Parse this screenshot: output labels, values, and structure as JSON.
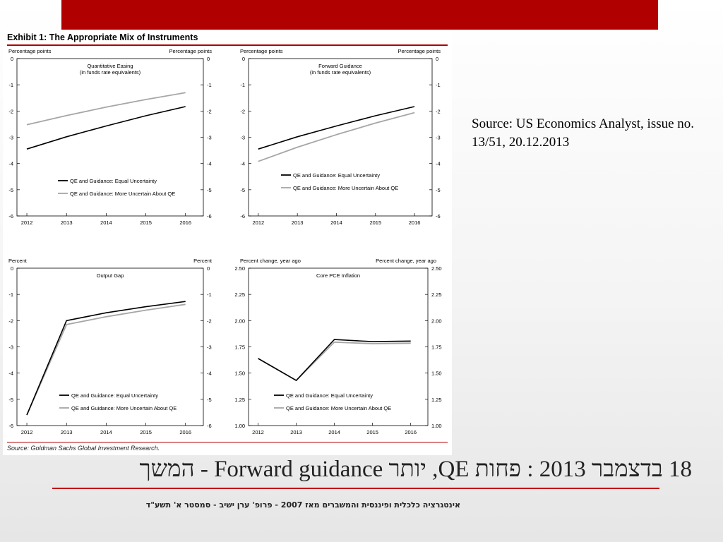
{
  "exhibit": {
    "title": "Exhibit 1: The Appropriate Mix of Instruments",
    "source": "Source: Goldman Sachs Global Investment Research."
  },
  "slide": {
    "source_note": "Source: US Economics Analyst, issue no. 13/51, 20.12.2013",
    "title": "18 בדצמבר 2013 : פחות QE, יותר Forward guidance - המשך",
    "footer": "אינטגרציה כלכלית ופיננסית והמשברים מאז 2007 - פרופ' ערן ישיב - סמסטר א' תשע\"ד"
  },
  "colors": {
    "top_bar": "#b00000",
    "series_equal": "#000000",
    "series_more_uncertain": "#a6a6a6",
    "title_rule": "#c00000"
  },
  "chart_data": [
    {
      "type": "line",
      "title": "Quantitative Easing",
      "subtitle": "(in funds rate equivalents)",
      "ylabel_left": "Percentage points",
      "ylabel_right": "Percentage points",
      "x": [
        2012,
        2016
      ],
      "xticks": [
        "2012",
        "2013",
        "2014",
        "2015",
        "2016"
      ],
      "xlim": [
        2011.75,
        2016.45
      ],
      "ylim": [
        -6,
        0
      ],
      "yticks": [
        "0",
        "-1",
        "-2",
        "-3",
        "-4",
        "-5",
        "-6"
      ],
      "ytick_values": [
        0,
        -1,
        -2,
        -3,
        -4,
        -5,
        -6
      ],
      "legend_position": "bottom-left",
      "series": [
        {
          "name": "QE and Guidance: Equal Uncertainty",
          "x": [
            2012,
            2013,
            2014,
            2015,
            2016
          ],
          "values": [
            -3.45,
            -2.98,
            -2.57,
            -2.18,
            -1.83
          ]
        },
        {
          "name": "QE and Guidance: More Uncertain About QE",
          "x": [
            2012,
            2013,
            2014,
            2015,
            2016
          ],
          "values": [
            -2.52,
            -2.17,
            -1.85,
            -1.56,
            -1.3
          ]
        }
      ]
    },
    {
      "type": "line",
      "title": "Forward Guidance",
      "subtitle": "(in funds rate equivalents)",
      "ylabel_left": "Percentage points",
      "ylabel_right": "Percentage points",
      "xticks": [
        "2012",
        "2013",
        "2014",
        "2015",
        "2016"
      ],
      "xlim": [
        2011.75,
        2016.45
      ],
      "ylim": [
        -6,
        0
      ],
      "yticks": [
        "0",
        "-1",
        "-2",
        "-3",
        "-4",
        "-5",
        "-6"
      ],
      "ytick_values": [
        0,
        -1,
        -2,
        -3,
        -4,
        -5,
        -6
      ],
      "legend_position": "bottom-left",
      "series": [
        {
          "name": "QE and Guidance: Equal Uncertainty",
          "x": [
            2012,
            2013,
            2014,
            2015,
            2016
          ],
          "values": [
            -3.45,
            -2.98,
            -2.57,
            -2.18,
            -1.83
          ]
        },
        {
          "name": "QE and Guidance: More Uncertain About QE",
          "x": [
            2012,
            2013,
            2014,
            2015,
            2016
          ],
          "values": [
            -3.92,
            -3.38,
            -2.9,
            -2.46,
            -2.06
          ]
        }
      ]
    },
    {
      "type": "line",
      "title": "Output Gap",
      "subtitle": "",
      "ylabel_left": "Percent",
      "ylabel_right": "Percent",
      "xticks": [
        "2012",
        "2013",
        "2014",
        "2015",
        "2016"
      ],
      "xlim": [
        2011.75,
        2016.45
      ],
      "ylim": [
        -6,
        0
      ],
      "yticks": [
        "0",
        "-1",
        "-2",
        "-3",
        "-4",
        "-5",
        "-6"
      ],
      "ytick_values": [
        0,
        -1,
        -2,
        -3,
        -4,
        -5,
        -6
      ],
      "legend_position": "bottom-right",
      "series": [
        {
          "name": "QE and Guidance: Equal Uncertainty",
          "x": [
            2012,
            2013,
            2014,
            2015,
            2016
          ],
          "values": [
            -5.6,
            -2.0,
            -1.7,
            -1.47,
            -1.27
          ]
        },
        {
          "name": "QE and Guidance: More Uncertain About QE",
          "x": [
            2012,
            2013,
            2014,
            2015,
            2016
          ],
          "values": [
            -5.6,
            -2.15,
            -1.85,
            -1.6,
            -1.38
          ]
        }
      ]
    },
    {
      "type": "line",
      "title": "Core PCE Inflation",
      "subtitle": "",
      "ylabel_left": "Percent change, year ago",
      "ylabel_right": "Percent change, year ago",
      "xticks": [
        "2012",
        "2013",
        "2014",
        "2015",
        "2016"
      ],
      "xlim": [
        2011.75,
        2016.45
      ],
      "ylim": [
        1.0,
        2.5
      ],
      "yticks": [
        "2.50",
        "2.25",
        "2.00",
        "1.75",
        "1.50",
        "1.25",
        "1.00"
      ],
      "ytick_values": [
        2.5,
        2.25,
        2.0,
        1.75,
        1.5,
        1.25,
        1.0
      ],
      "legend_position": "bottom-right",
      "series": [
        {
          "name": "QE and Guidance: Equal Uncertainty",
          "x": [
            2012,
            2013,
            2014,
            2015,
            2016
          ],
          "values": [
            1.64,
            1.43,
            1.82,
            1.8,
            1.805
          ]
        },
        {
          "name": "QE and Guidance: More Uncertain About QE",
          "x": [
            2012,
            2013,
            2014,
            2015,
            2016
          ],
          "values": [
            1.64,
            1.43,
            1.795,
            1.78,
            1.785
          ]
        }
      ]
    }
  ]
}
